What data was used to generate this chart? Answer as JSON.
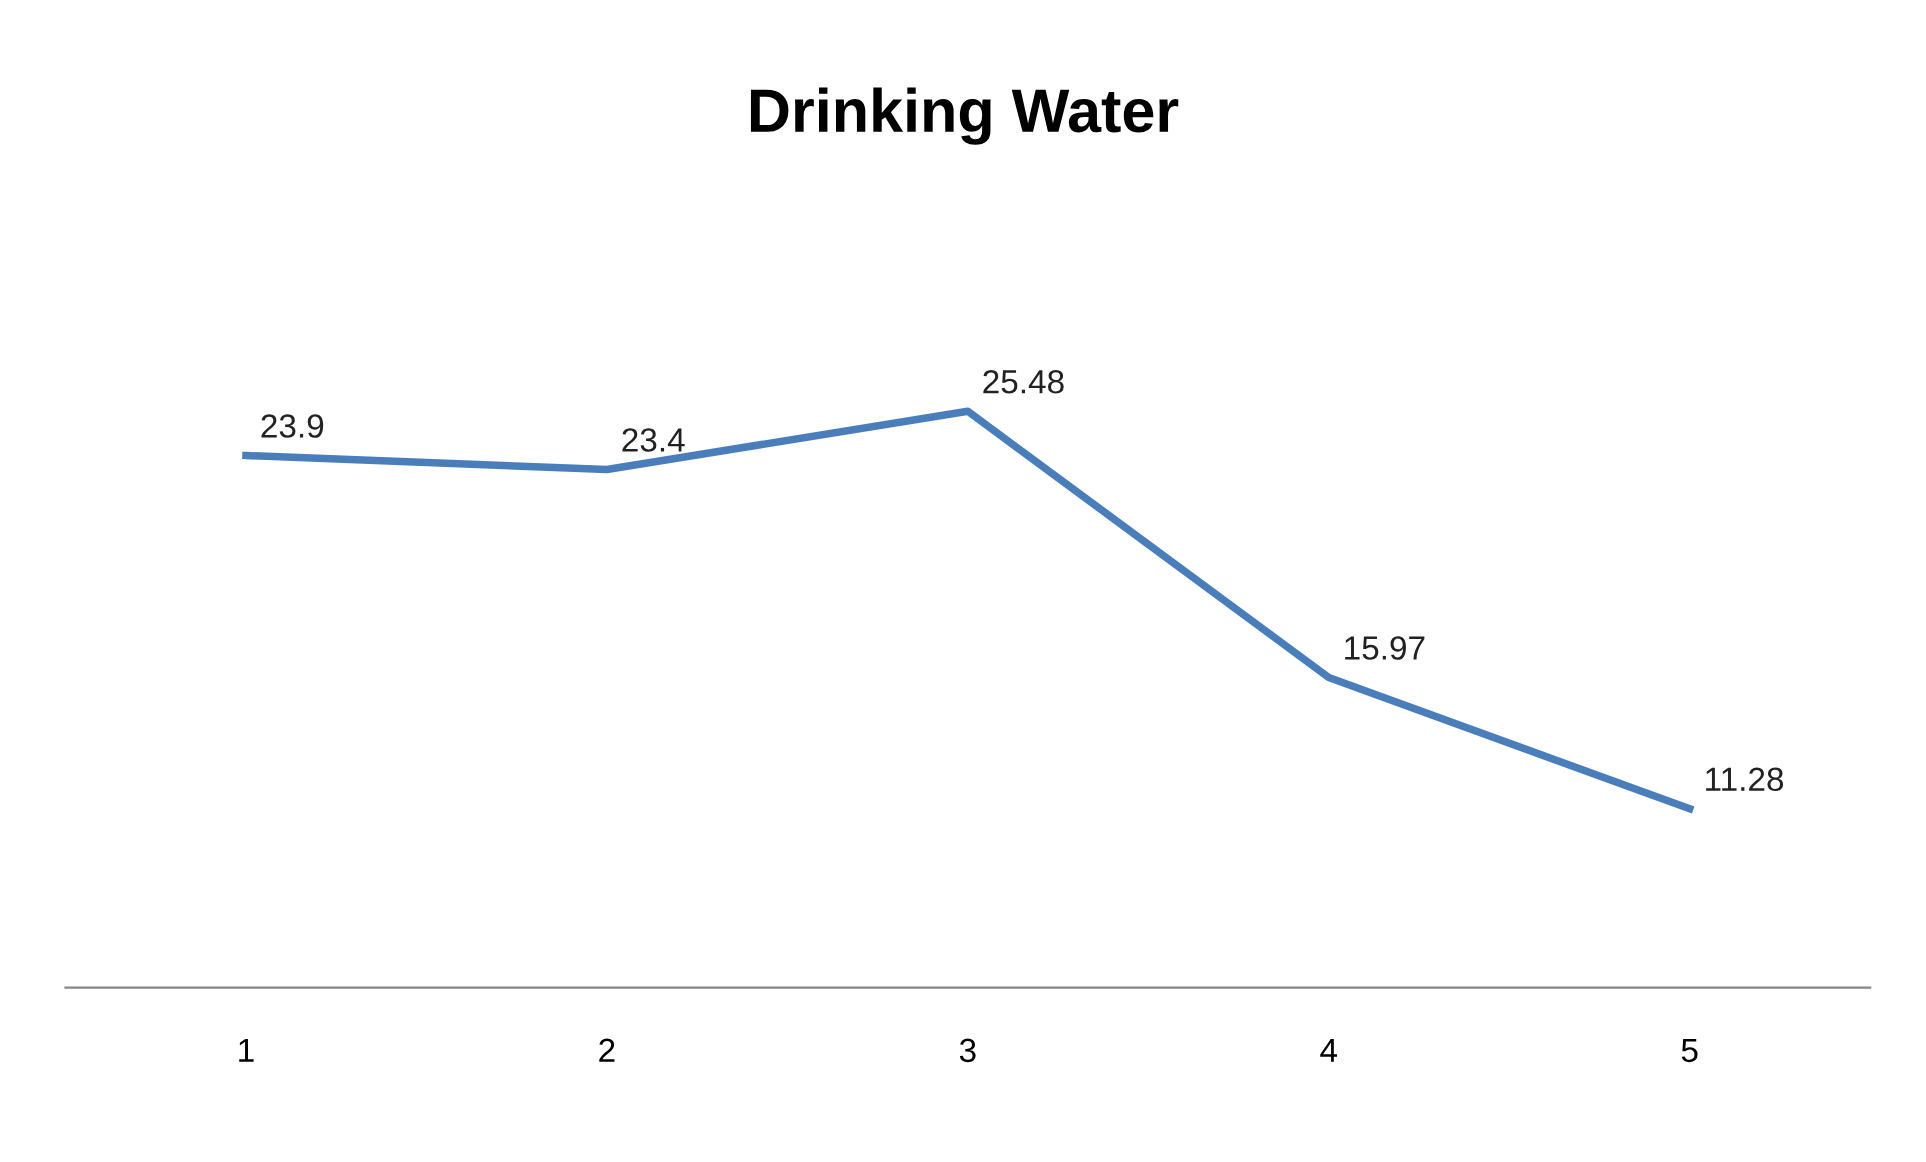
{
  "chart_data": {
    "type": "line",
    "title": "Drinking Water",
    "categories": [
      "1",
      "2",
      "3",
      "4",
      "5"
    ],
    "series": [
      {
        "color": "#4a7ebb",
        "values": [
          23.9,
          23.4,
          25.48,
          15.97,
          11.28
        ]
      }
    ],
    "tick_labels": "x",
    "data_labels": true,
    "grid": false,
    "legend": false,
    "marker": "none",
    "line_style": "solid"
  }
}
